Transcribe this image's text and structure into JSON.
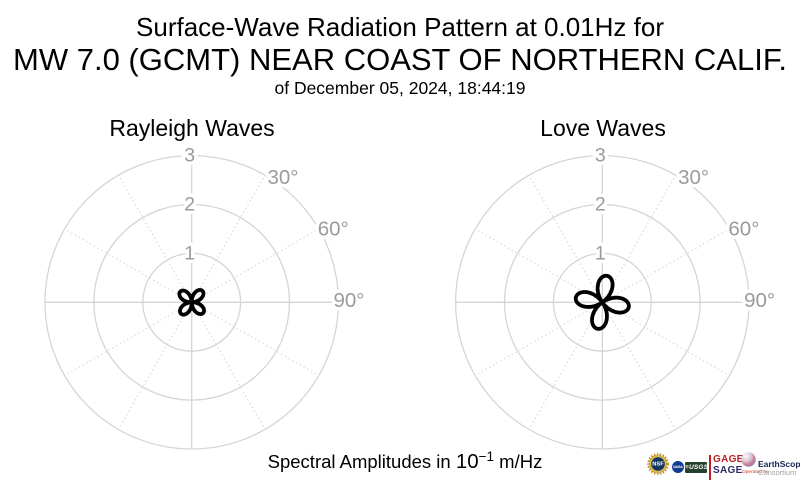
{
  "figure_title": {
    "line1": "Surface-Wave Radiation Pattern at 0.01Hz for",
    "line2": "MW 7.0 (GCMT) NEAR COAST OF NORTHERN CALIF.",
    "line3": "of December 05, 2024, 18:44:19"
  },
  "caption": {
    "prefix": "Spectral Amplitudes in ",
    "base": "10",
    "exponent": "−1",
    "suffix": " m/Hz"
  },
  "chart_data": [
    {
      "type": "polar_radiation_pattern",
      "title": "Rayleigh Waves",
      "r_axis": {
        "ticks": [
          1,
          2,
          3
        ],
        "max": 3,
        "units": "10^-1 m/Hz"
      },
      "theta_axis": {
        "labels": [
          "30°",
          "60°",
          "90°"
        ],
        "label_angles_deg": [
          30,
          60,
          90
        ],
        "grid_step_deg": 30,
        "zero_location": "top",
        "direction": "clockwise"
      },
      "pattern": {
        "form": "r(θ) = A·|cos(2·(θ−θ0))|",
        "amplitude": 0.32,
        "rotation_deg": 43,
        "lobe_azimuths_deg": [
          43,
          133,
          223,
          313
        ],
        "n_lobes": 4
      }
    },
    {
      "type": "polar_radiation_pattern",
      "title": "Love Waves",
      "r_axis": {
        "ticks": [
          1,
          2,
          3
        ],
        "max": 3,
        "units": "10^-1 m/Hz"
      },
      "theta_axis": {
        "labels": [
          "30°",
          "60°",
          "90°"
        ],
        "label_angles_deg": [
          30,
          60,
          90
        ],
        "grid_step_deg": 30,
        "zero_location": "top",
        "direction": "clockwise"
      },
      "pattern": {
        "form": "r(θ) = A·|cos(2·(θ−θ0))|",
        "amplitude": 0.55,
        "rotation_deg": 10,
        "lobe_azimuths_deg": [
          10,
          100,
          190,
          280
        ],
        "n_lobes": 4
      }
    }
  ],
  "colors": {
    "grid": "#d5d5d5",
    "grid_dotted": "#dadada",
    "tick_label": "#9b9b9b",
    "pattern": "#000000",
    "gage_red": "#bf2026",
    "sage_navy": "#2d2a6e",
    "earthscope_navy": "#16254c",
    "earthscope_gray": "#a3a3a3",
    "operated_by_red": "#c03a2b",
    "nsf_gold": "#d9b64e",
    "nsf_ring": "#b98b2f",
    "nsf_navy": "#12355f",
    "nasa_blue": "#0b3d91",
    "usgs_green": "#25402c"
  },
  "logos": {
    "nsf": {
      "label": "NSF"
    },
    "nasa": {
      "label": "NASA"
    },
    "usgs": {
      "stripes": "≡",
      "label": "USGS"
    },
    "gage": {
      "label": "GAGE"
    },
    "sage": {
      "label": "SAGE"
    },
    "earthscope": {
      "operated_by": "Operated by",
      "name": "EarthScope",
      "sub": "Consortium"
    }
  }
}
